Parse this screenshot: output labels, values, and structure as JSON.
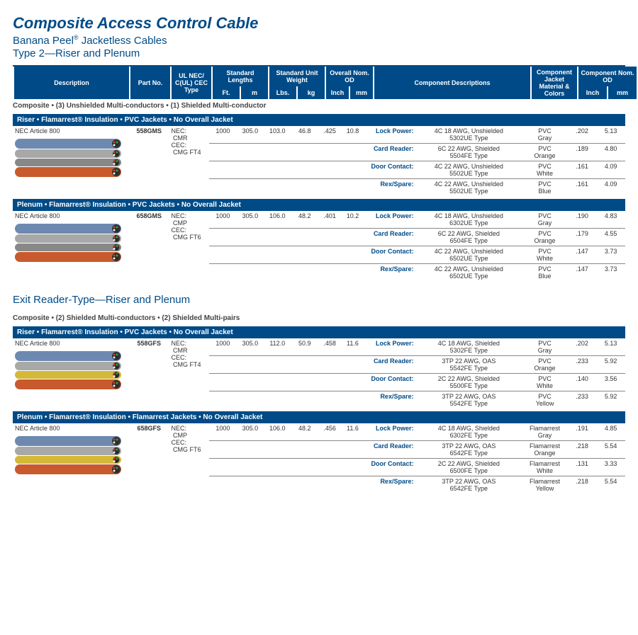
{
  "title": "Composite Access Control Cable",
  "subtitle_a": "Banana Peel",
  "subtitle_b": " Jacketless Cables",
  "type1": "Type 2—Riser and Plenum",
  "type2": "Exit Reader-Type—Riser and Plenum",
  "hdr": {
    "desc": "Description",
    "pn": "Part No.",
    "ul": "UL NEC/ C(UL) CEC Type",
    "stdlen": "Standard Lengths",
    "ft": "Ft.",
    "m": "m",
    "stdwt": "Standard Unit Weight",
    "lbs": "Lbs.",
    "kg": "kg",
    "nomod": "Overall Nom. OD",
    "inch": "Inch",
    "mm": "mm",
    "cdesc": "Component Descriptions",
    "cjmc": "Component Jacket Material & Colors",
    "cnomod": "Component Nom. OD"
  },
  "subcat1": "Composite • (3) Unshielded Multi-conductors • (1) Shielded Multi-conductor",
  "subcat2": "Composite • (2) Shielded Multi-conductors • (2) Shielded Multi-pairs",
  "bar_riser": "Riser • Flamarrest® Insulation • PVC Jackets • No Overall Jacket",
  "bar_plenum": "Plenum • Flamarrest® Insulation • PVC Jackets • No Overall Jacket",
  "bar_plenum2": "Plenum • Flamarrest® Insulation • Flamarrest Jackets • No Overall Jacket",
  "p1": {
    "desc": "NEC Article 800",
    "pn": "558GMS",
    "ul1": "NEC:",
    "ul1v": "CMR",
    "ul2": "CEC:",
    "ul2v": "CMG FT4",
    "ft": "1000",
    "m": "305.0",
    "lbs": "103.0",
    "kg": "46.8",
    "inch": ".425",
    "mm": "10.8",
    "img_colors": [
      "#6d89b0",
      "#a8a8a8",
      "#888888",
      "#c85a2e"
    ],
    "rows": [
      {
        "lab": "Lock Power:",
        "d1": "4C 18 AWG, Unshielded",
        "d2": "5302UE Type",
        "mat": "PVC",
        "col": "Gray",
        "in": ".202",
        "mm": "5.13"
      },
      {
        "lab": "Card Reader:",
        "d1": "6C 22 AWG, Shielded",
        "d2": "5504FE Type",
        "mat": "PVC",
        "col": "Orange",
        "in": ".189",
        "mm": "4.80"
      },
      {
        "lab": "Door Contact:",
        "d1": "4C 22 AWG, Unshielded",
        "d2": "5502UE Type",
        "mat": "PVC",
        "col": "White",
        "in": ".161",
        "mm": "4.09"
      },
      {
        "lab": "Rex/Spare:",
        "d1": "4C 22 AWG, Unshielded",
        "d2": "5502UE Type",
        "mat": "PVC",
        "col": "Blue",
        "in": ".161",
        "mm": "4.09"
      }
    ]
  },
  "p2": {
    "desc": "NEC Article 800",
    "pn": "658GMS",
    "ul1": "NEC:",
    "ul1v": "CMP",
    "ul2": "CEC:",
    "ul2v": "CMG FT6",
    "ft": "1000",
    "m": "305.0",
    "lbs": "106.0",
    "kg": "48.2",
    "inch": ".401",
    "mm": "10.2",
    "img_colors": [
      "#6d89b0",
      "#a8a8a8",
      "#888888",
      "#c85a2e"
    ],
    "rows": [
      {
        "lab": "Lock Power:",
        "d1": "4C 18 AWG, Unshielded",
        "d2": "6302UE Type",
        "mat": "PVC",
        "col": "Gray",
        "in": ".190",
        "mm": "4.83"
      },
      {
        "lab": "Card Reader:",
        "d1": "6C 22 AWG, Shielded",
        "d2": "6504FE Type",
        "mat": "PVC",
        "col": "Orange",
        "in": ".179",
        "mm": "4.55"
      },
      {
        "lab": "Door Contact:",
        "d1": "4C 22 AWG, Unshielded",
        "d2": "6502UE Type",
        "mat": "PVC",
        "col": "White",
        "in": ".147",
        "mm": "3.73"
      },
      {
        "lab": "Rex/Spare:",
        "d1": "4C 22 AWG, Unshielded",
        "d2": "6502UE Type",
        "mat": "PVC",
        "col": "Blue",
        "in": ".147",
        "mm": "3.73"
      }
    ]
  },
  "p3": {
    "desc": "NEC Article 800",
    "pn": "558GFS",
    "ul1": "NEC:",
    "ul1v": "CMR",
    "ul2": "CEC:",
    "ul2v": "CMG FT4",
    "ft": "1000",
    "m": "305.0",
    "lbs": "112.0",
    "kg": "50.9",
    "inch": ".458",
    "mm": "11.6",
    "img_colors": [
      "#6d89b0",
      "#a8a8a8",
      "#d4b838",
      "#c85a2e"
    ],
    "rows": [
      {
        "lab": "Lock Power:",
        "d1": "4C 18 AWG, Shielded",
        "d2": "5302FE Type",
        "mat": "PVC",
        "col": "Gray",
        "in": ".202",
        "mm": "5.13"
      },
      {
        "lab": "Card Reader:",
        "d1": "3TP 22 AWG, OAS",
        "d2": "5542FE Type",
        "mat": "PVC",
        "col": "Orange",
        "in": ".233",
        "mm": "5.92"
      },
      {
        "lab": "Door Contact:",
        "d1": "2C 22 AWG, Shielded",
        "d2": "5500FE Type",
        "mat": "PVC",
        "col": "White",
        "in": ".140",
        "mm": "3.56"
      },
      {
        "lab": "Rex/Spare:",
        "d1": "3TP 22 AWG, OAS",
        "d2": "5542FE Type",
        "mat": "PVC",
        "col": "Yellow",
        "in": ".233",
        "mm": "5.92"
      }
    ]
  },
  "p4": {
    "desc": "NEC Article 800",
    "pn": "658GFS",
    "ul1": "NEC:",
    "ul1v": "CMP",
    "ul2": "CEC:",
    "ul2v": "CMG FT6",
    "ft": "1000",
    "m": "305.0",
    "lbs": "106.0",
    "kg": "48.2",
    "inch": ".456",
    "mm": "11.6",
    "img_colors": [
      "#6d89b0",
      "#a8a8a8",
      "#d4b838",
      "#c85a2e"
    ],
    "rows": [
      {
        "lab": "Lock Power:",
        "d1": "4C 18 AWG, Shielded",
        "d2": "6302FE Type",
        "mat": "Flamarrest",
        "col": "Gray",
        "in": ".191",
        "mm": "4.85"
      },
      {
        "lab": "Card Reader:",
        "d1": "3TP 22 AWG, OAS",
        "d2": "6542FE Type",
        "mat": "Flamarrest",
        "col": "Orange",
        "in": ".218",
        "mm": "5.54"
      },
      {
        "lab": "Door Contact:",
        "d1": "2C 22 AWG, Shielded",
        "d2": "6500FE Type",
        "mat": "Flamarrest",
        "col": "White",
        "in": ".131",
        "mm": "3.33"
      },
      {
        "lab": "Rex/Spare:",
        "d1": "3TP 22 AWG, OAS",
        "d2": "6542FE Type",
        "mat": "Flamarrest",
        "col": "Yellow",
        "in": ".218",
        "mm": "5.54"
      }
    ]
  }
}
